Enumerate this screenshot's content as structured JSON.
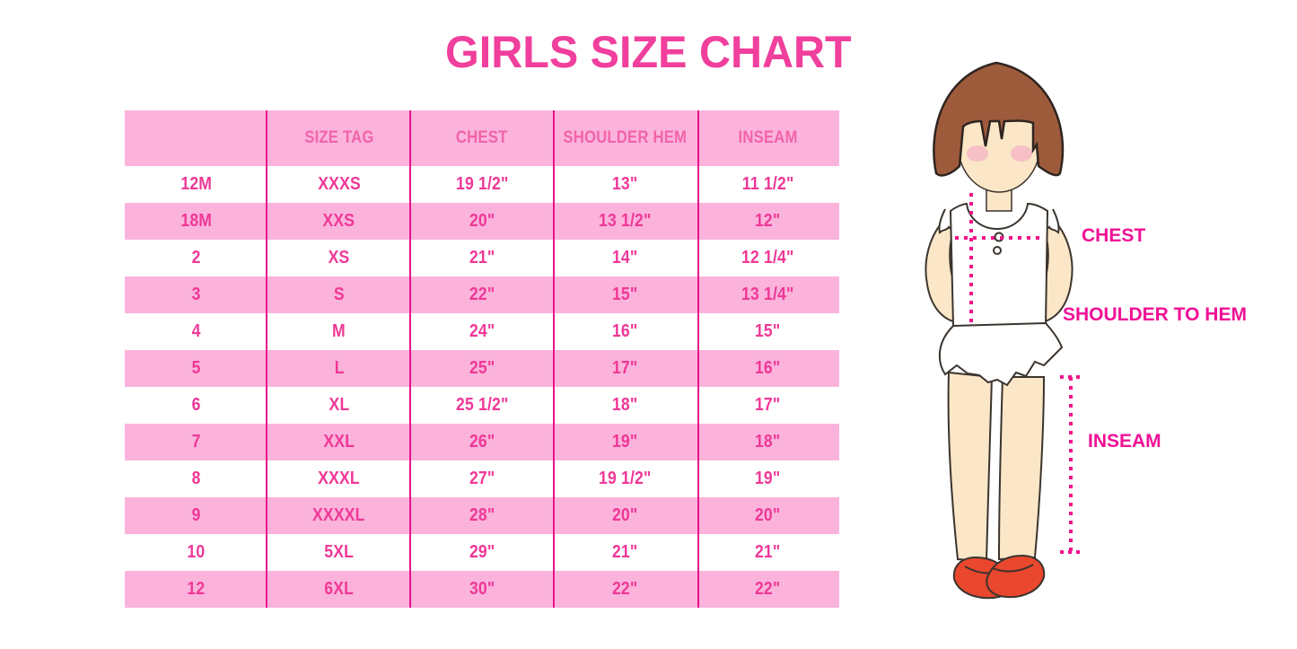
{
  "title": "GIRLS SIZE CHART",
  "colors": {
    "accent_pink": "#f03f9c",
    "row_pink": "#fbb3db",
    "divider_magenta": "#e9138b",
    "table_text_pink": "#ef3897",
    "annotation_pink": "#f01196",
    "shoe_red": "#e9472e",
    "hair_brown": "#9e5b3c",
    "skin": "#fbe7c7"
  },
  "chart_data": {
    "type": "table",
    "title": "GIRLS SIZE CHART",
    "columns": [
      "",
      "SIZE TAG",
      "CHEST",
      "SHOULDER HEM",
      "INSEAM"
    ],
    "rows": [
      [
        "12M",
        "XXXS",
        "19 1/2\"",
        "13\"",
        "11 1/2\""
      ],
      [
        "18M",
        "XXS",
        "20\"",
        "13 1/2\"",
        "12\""
      ],
      [
        "2",
        "XS",
        "21\"",
        "14\"",
        "12 1/4\""
      ],
      [
        "3",
        "S",
        "22\"",
        "15\"",
        "13 1/4\""
      ],
      [
        "4",
        "M",
        "24\"",
        "16\"",
        "15\""
      ],
      [
        "5",
        "L",
        "25\"",
        "17\"",
        "16\""
      ],
      [
        "6",
        "XL",
        "25 1/2\"",
        "18\"",
        "17\""
      ],
      [
        "7",
        "XXL",
        "26\"",
        "19\"",
        "18\""
      ],
      [
        "8",
        "XXXL",
        "27\"",
        "19 1/2\"",
        "19\""
      ],
      [
        "9",
        "XXXXL",
        "28\"",
        "20\"",
        "20\""
      ],
      [
        "10",
        "5XL",
        "29\"",
        "21\"",
        "21\""
      ],
      [
        "12",
        "6XL",
        "30\"",
        "22\"",
        "22\""
      ]
    ],
    "row_striping": "white/pink alternating, header pink",
    "grid": "vertical magenta dividers only"
  },
  "figure": {
    "description": "illustrated girl showing measurement points",
    "annotations": {
      "chest": "CHEST",
      "shoulder_to_hem": "SHOULDER TO HEM",
      "inseam": "INSEAM"
    }
  }
}
